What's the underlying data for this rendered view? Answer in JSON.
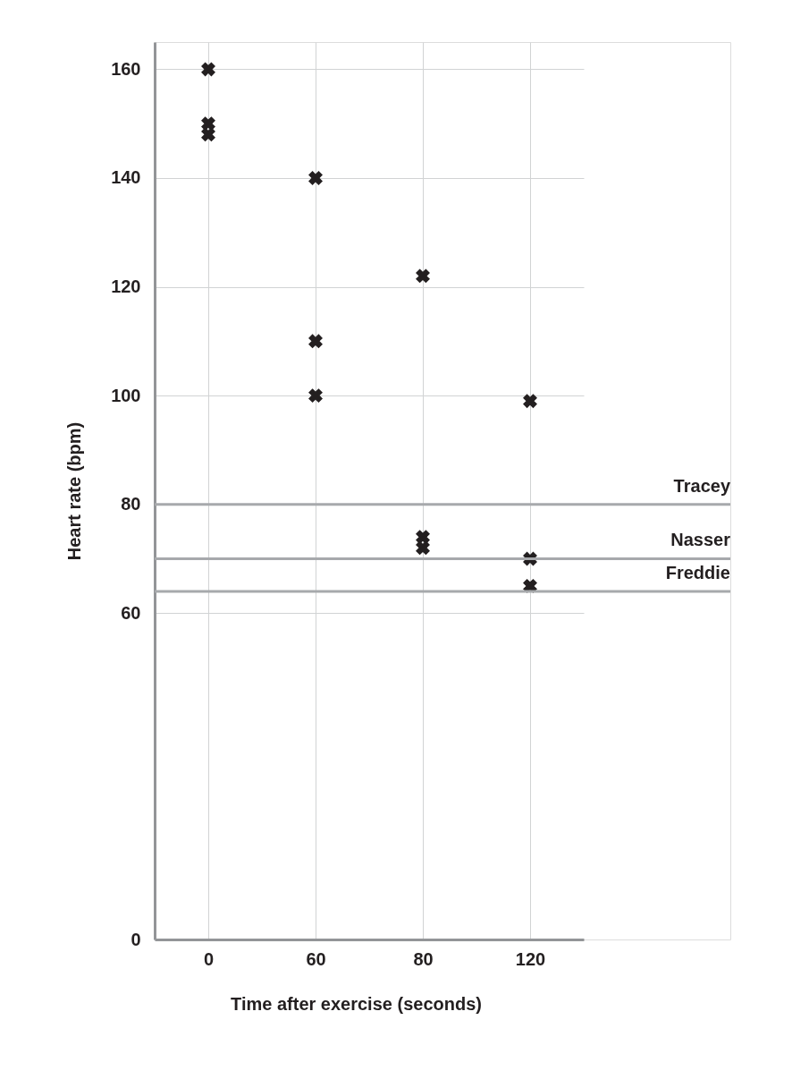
{
  "chart_data": {
    "type": "scatter",
    "xlabel": "Time after exercise (seconds)",
    "ylabel": "Heart rate (bpm)",
    "categories": [
      "0",
      "60",
      "80",
      "120"
    ],
    "series": [
      {
        "color": "#231f20",
        "x": [
          "0",
          "0",
          "0",
          "60",
          "60",
          "60",
          "80",
          "80",
          "80",
          "120",
          "120",
          "120"
        ],
        "values": [
          160,
          150,
          148,
          140,
          110,
          100,
          122,
          74,
          72,
          99,
          70,
          65
        ]
      }
    ],
    "ylim": [
      0,
      165
    ],
    "yticks": [
      0,
      60,
      80,
      100,
      120,
      140,
      160
    ],
    "ref_lines": [
      {
        "axis": "y",
        "value": 80,
        "label": "Tracey",
        "color": "#a7a9ac"
      },
      {
        "axis": "y",
        "value": 70,
        "label": "Nasser",
        "color": "#a7a9ac"
      },
      {
        "axis": "y",
        "value": 64,
        "label": "Freddie",
        "color": "#a7a9ac"
      }
    ],
    "marker": "cross",
    "grid": true
  }
}
